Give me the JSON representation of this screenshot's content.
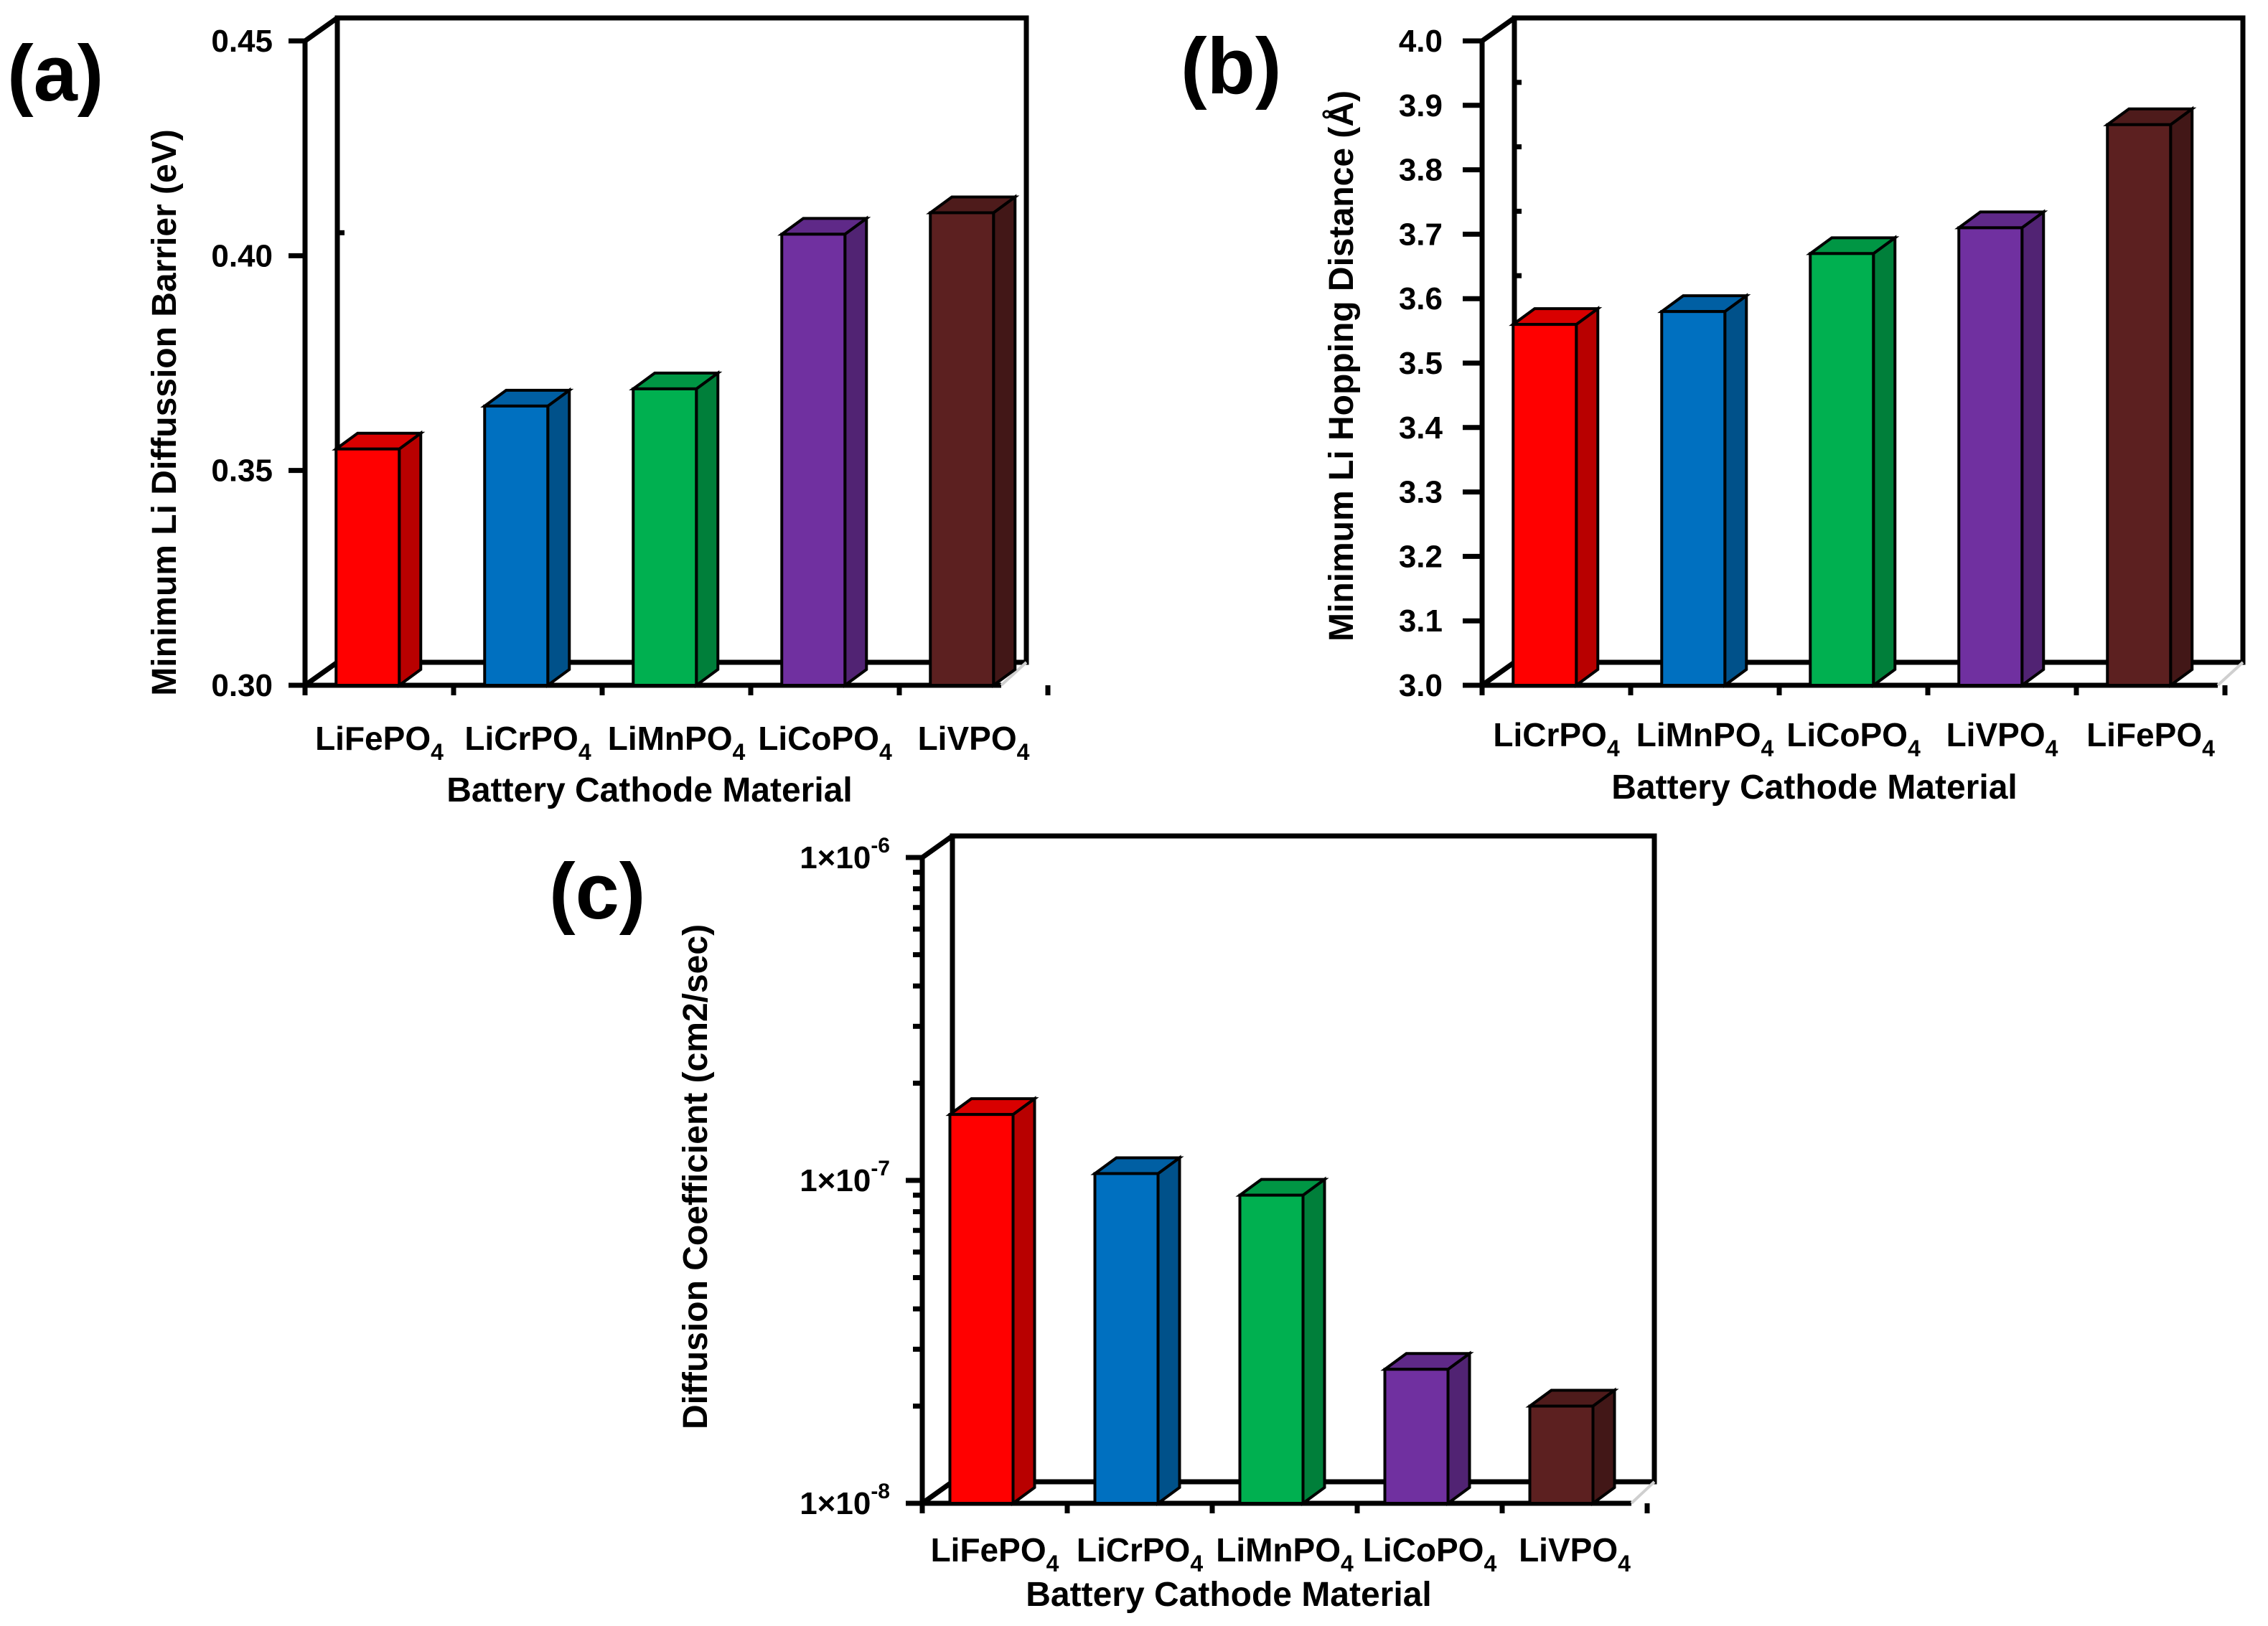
{
  "chart_data": [
    {
      "panel": "(a)",
      "type": "bar",
      "title": "",
      "xlabel": "Battery Cathode Material",
      "ylabel": "Minimum Li Diffussion Barrier (eV)",
      "scale": "linear",
      "ylim": [
        0.3,
        0.45
      ],
      "ticks": [
        0.3,
        0.35,
        0.4,
        0.45
      ],
      "tick_labels": [
        "0.30",
        "0.35",
        "0.40",
        "0.45"
      ],
      "categories": [
        {
          "base": "LiFePO",
          "sub": "4"
        },
        {
          "base": "LiCrPO",
          "sub": "4"
        },
        {
          "base": "LiMnPO",
          "sub": "4"
        },
        {
          "base": "LiCoPO",
          "sub": "4"
        },
        {
          "base": "LiVPO",
          "sub": "4"
        }
      ],
      "values": [
        0.355,
        0.365,
        0.369,
        0.405,
        0.41
      ],
      "colors": [
        "#ff0000",
        "#0070c0",
        "#00b050",
        "#7030a0",
        "#5c2020"
      ]
    },
    {
      "panel": "(b)",
      "type": "bar",
      "title": "",
      "xlabel": "Battery Cathode Material",
      "ylabel": "Minimum Li Hopping Distance (Å)",
      "scale": "linear",
      "ylim": [
        3.0,
        4.0
      ],
      "ticks": [
        3.0,
        3.1,
        3.2,
        3.3,
        3.4,
        3.5,
        3.6,
        3.7,
        3.8,
        3.9,
        4.0
      ],
      "tick_labels": [
        "3.0",
        "3.1",
        "3.2",
        "3.3",
        "3.4",
        "3.5",
        "3.6",
        "3.7",
        "3.8",
        "3.9",
        "4.0"
      ],
      "categories": [
        {
          "base": "LiCrPO",
          "sub": "4"
        },
        {
          "base": "LiMnPO",
          "sub": "4"
        },
        {
          "base": "LiCoPO",
          "sub": "4"
        },
        {
          "base": "LiVPO",
          "sub": "4"
        },
        {
          "base": "LiFePO",
          "sub": "4"
        }
      ],
      "values": [
        3.56,
        3.58,
        3.67,
        3.71,
        3.87
      ],
      "colors": [
        "#ff0000",
        "#0070c0",
        "#00b050",
        "#7030a0",
        "#5c2020"
      ]
    },
    {
      "panel": "(c)",
      "type": "bar",
      "title": "",
      "xlabel": "Battery Cathode Material",
      "ylabel": "Diffusion Coefficient (cm2/sec)",
      "scale": "log",
      "ylim": [
        1e-08,
        1e-06
      ],
      "ticks": [
        1e-08,
        1e-07,
        1e-06
      ],
      "tick_labels": [
        {
          "base": "1×10",
          "exp": "-8"
        },
        {
          "base": "1×10",
          "exp": "-7"
        },
        {
          "base": "1×10",
          "exp": "-6"
        }
      ],
      "categories": [
        {
          "base": "LiFePO",
          "sub": "4"
        },
        {
          "base": "LiCrPO",
          "sub": "4"
        },
        {
          "base": "LiMnPO",
          "sub": "4"
        },
        {
          "base": "LiCoPO",
          "sub": "4"
        },
        {
          "base": "LiVPO",
          "sub": "4"
        }
      ],
      "values": [
        1.6e-07,
        1.05e-07,
        9e-08,
        2.6e-08,
        2e-08
      ],
      "colors": [
        "#ff0000",
        "#0070c0",
        "#00b050",
        "#7030a0",
        "#5c2020"
      ]
    }
  ]
}
